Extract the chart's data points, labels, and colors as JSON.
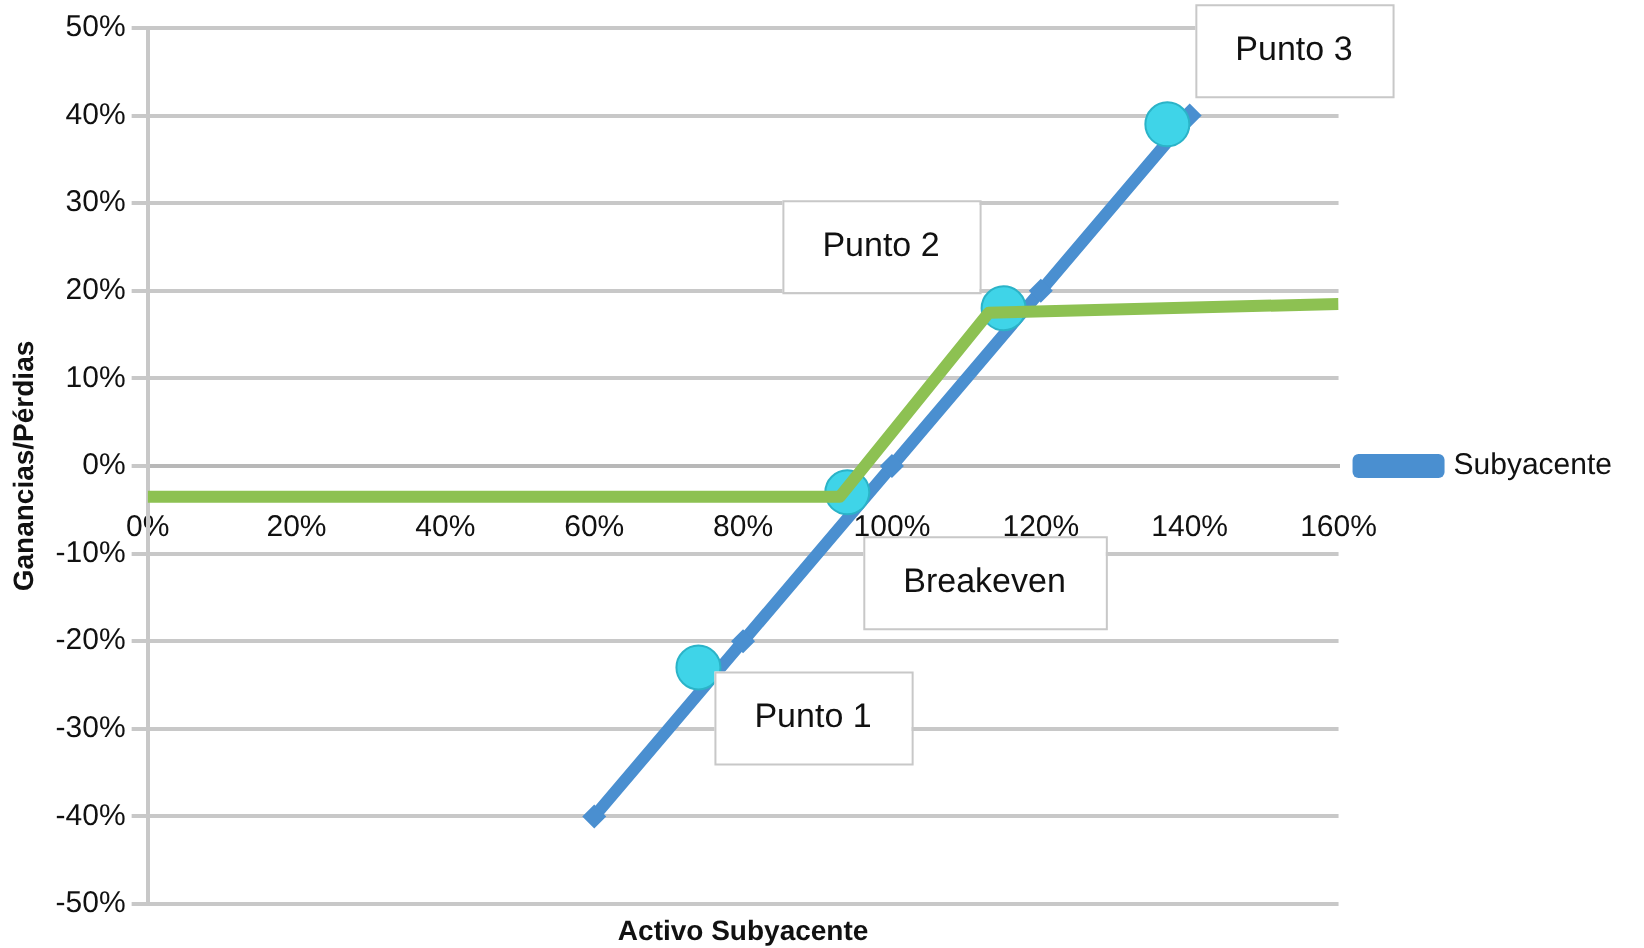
{
  "chart_data": {
    "type": "line",
    "xlabel": "Activo Subyacente",
    "ylabel": "Ganancias/Pérdias",
    "xlim": [
      0,
      160
    ],
    "xticks": [
      {
        "value": 0,
        "label": "0%"
      },
      {
        "value": 20,
        "label": "20%"
      },
      {
        "value": 40,
        "label": "40%"
      },
      {
        "value": 60,
        "label": "60%"
      },
      {
        "value": 80,
        "label": "80%"
      },
      {
        "value": 100,
        "label": "100%"
      },
      {
        "value": 120,
        "label": "120%"
      },
      {
        "value": 140,
        "label": "140%"
      },
      {
        "value": 160,
        "label": "160%"
      }
    ],
    "ylim": [
      -50,
      50
    ],
    "yticks": [
      {
        "value": -50,
        "label": "-50%"
      },
      {
        "value": -40,
        "label": "-40%"
      },
      {
        "value": -30,
        "label": "-30%"
      },
      {
        "value": -20,
        "label": "-20%"
      },
      {
        "value": -10,
        "label": "-10%"
      },
      {
        "value": 0,
        "label": "0%"
      },
      {
        "value": 10,
        "label": "10%"
      },
      {
        "value": 20,
        "label": "20%"
      },
      {
        "value": 30,
        "label": "30%"
      },
      {
        "value": 40,
        "label": "40%"
      },
      {
        "value": 50,
        "label": "50%"
      }
    ],
    "grid": "y",
    "legend": "right",
    "series": [
      {
        "name": "Subyacente",
        "color": "#4a8fd0",
        "marker": "diamond",
        "x": [
          60,
          80,
          100,
          120,
          140
        ],
        "values": [
          -40,
          -20,
          0,
          20,
          40
        ]
      },
      {
        "color": "#8dc152",
        "marker": "none",
        "x": [
          0,
          93,
          113,
          160
        ],
        "values": [
          -3.5,
          -3.5,
          17.5,
          18.5
        ]
      },
      {
        "type": "scatter",
        "color": "#3fd4e8",
        "marker": "circle",
        "x": [
          74,
          94,
          115,
          137
        ],
        "values": [
          -23,
          -3,
          18,
          39
        ]
      }
    ],
    "annotations": [
      {
        "text": "Punto 1",
        "x": 74,
        "y": -23
      },
      {
        "text": "Breakeven",
        "x": 94,
        "y": -3
      },
      {
        "text": "Punto 2",
        "x": 115,
        "y": 18
      },
      {
        "text": "Punto 3",
        "x": 137,
        "y": 39
      }
    ]
  }
}
